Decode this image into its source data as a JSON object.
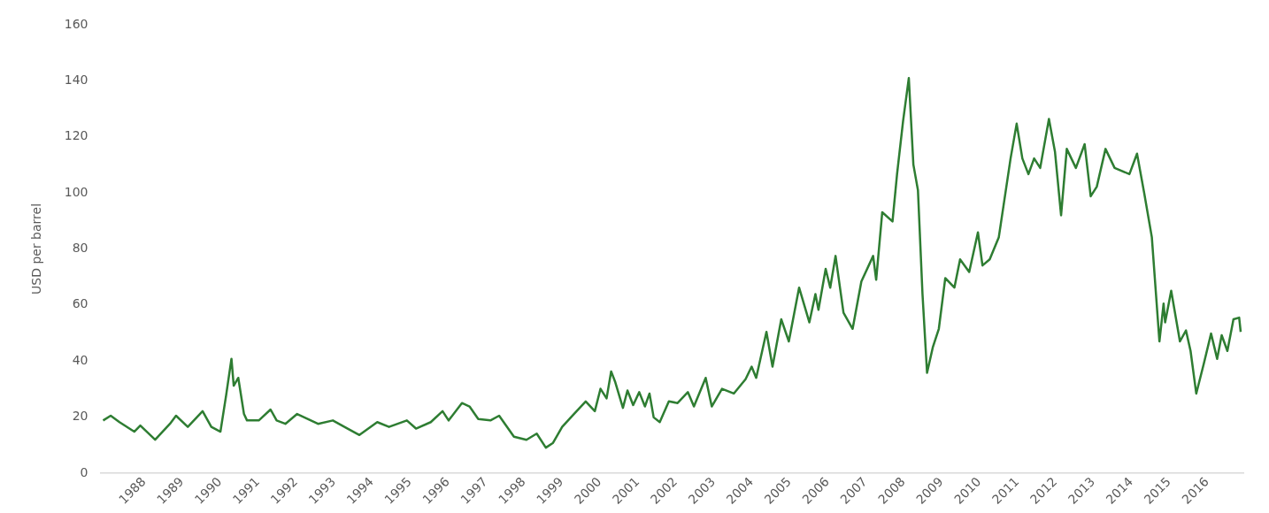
{
  "chart_data": {
    "type": "line",
    "ylabel": "USD per barrel",
    "xlim": [
      1987.35,
      2017.45
    ],
    "xticks": [
      {
        "value": 1988.5,
        "label": "1988"
      },
      {
        "value": 1989.5,
        "label": "1989"
      },
      {
        "value": 1990.5,
        "label": "1990"
      },
      {
        "value": 1991.5,
        "label": "1991"
      },
      {
        "value": 1992.5,
        "label": "1992"
      },
      {
        "value": 1993.5,
        "label": "1993"
      },
      {
        "value": 1994.5,
        "label": "1994"
      },
      {
        "value": 1995.5,
        "label": "1995"
      },
      {
        "value": 1996.5,
        "label": "1996"
      },
      {
        "value": 1997.5,
        "label": "1997"
      },
      {
        "value": 1998.5,
        "label": "1998"
      },
      {
        "value": 1999.5,
        "label": "1999"
      },
      {
        "value": 2000.5,
        "label": "2000"
      },
      {
        "value": 2001.5,
        "label": "2001"
      },
      {
        "value": 2002.5,
        "label": "2002"
      },
      {
        "value": 2003.5,
        "label": "2003"
      },
      {
        "value": 2004.5,
        "label": "2004"
      },
      {
        "value": 2005.5,
        "label": "2005"
      },
      {
        "value": 2006.5,
        "label": "2006"
      },
      {
        "value": 2007.5,
        "label": "2007"
      },
      {
        "value": 2008.5,
        "label": "2008"
      },
      {
        "value": 2009.5,
        "label": "2009"
      },
      {
        "value": 2010.5,
        "label": "2010"
      },
      {
        "value": 2011.5,
        "label": "2011"
      },
      {
        "value": 2012.5,
        "label": "2012"
      },
      {
        "value": 2013.5,
        "label": "2013"
      },
      {
        "value": 2014.5,
        "label": "2014"
      },
      {
        "value": 2015.5,
        "label": "2015"
      },
      {
        "value": 2016.5,
        "label": "2016"
      }
    ],
    "ylim": [
      0,
      160
    ],
    "yticks": [
      0,
      20,
      40,
      60,
      80,
      100,
      120,
      140,
      160
    ],
    "grid": false,
    "legend": false,
    "marker": "none",
    "line_style": "solid",
    "series": [
      {
        "color": "#2e7d32",
        "x": [
          1987.42,
          1987.62,
          1987.85,
          1988.24,
          1988.4,
          1988.79,
          1989.18,
          1989.34,
          1989.65,
          1990.04,
          1990.27,
          1990.51,
          1990.66,
          1990.8,
          1990.86,
          1990.98,
          1991.13,
          1991.21,
          1991.52,
          1991.83,
          1991.99,
          1992.22,
          1992.53,
          1993.08,
          1993.47,
          1993.86,
          1994.17,
          1994.64,
          1994.95,
          1995.42,
          1995.66,
          1996.05,
          1996.36,
          1996.52,
          1996.87,
          1997.07,
          1997.3,
          1997.62,
          1997.85,
          1998.24,
          1998.57,
          1998.84,
          1999.08,
          1999.27,
          1999.51,
          1999.82,
          2000.13,
          2000.37,
          2000.52,
          2000.68,
          2000.8,
          2000.91,
          2001.11,
          2001.23,
          2001.38,
          2001.54,
          2001.69,
          2001.81,
          2001.92,
          2002.08,
          2002.32,
          2002.55,
          2002.82,
          2002.98,
          2003.29,
          2003.45,
          2003.72,
          2004.03,
          2004.34,
          2004.5,
          2004.62,
          2004.89,
          2005.05,
          2005.28,
          2005.48,
          2005.75,
          2006.02,
          2006.18,
          2006.26,
          2006.45,
          2006.57,
          2006.71,
          2006.92,
          2007.16,
          2007.39,
          2007.7,
          2007.78,
          2007.94,
          2008.21,
          2008.33,
          2008.49,
          2008.64,
          2008.76,
          2008.88,
          2009.0,
          2009.12,
          2009.27,
          2009.43,
          2009.6,
          2009.84,
          2009.99,
          2010.23,
          2010.46,
          2010.58,
          2010.77,
          2011.01,
          2011.32,
          2011.48,
          2011.63,
          2011.79,
          2011.94,
          2012.1,
          2012.33,
          2012.49,
          2012.65,
          2012.8,
          2013.04,
          2013.27,
          2013.43,
          2013.59,
          2013.82,
          2014.06,
          2014.45,
          2014.65,
          2014.84,
          2015.04,
          2015.24,
          2015.35,
          2015.39,
          2015.55,
          2015.78,
          2015.94,
          2016.06,
          2016.21,
          2016.41,
          2016.6,
          2016.76,
          2016.88,
          2017.03,
          2017.19,
          2017.34,
          2017.38
        ],
        "values": [
          18.8,
          20.5,
          18.2,
          14.8,
          17.0,
          11.9,
          17.6,
          20.5,
          16.5,
          22.1,
          16.5,
          14.8,
          27.8,
          40.8,
          31.2,
          34.0,
          21.1,
          18.8,
          18.8,
          22.7,
          18.8,
          17.6,
          21.1,
          17.6,
          18.8,
          15.9,
          13.6,
          18.2,
          16.5,
          18.8,
          15.9,
          18.2,
          22.1,
          18.8,
          25.0,
          23.8,
          19.3,
          18.8,
          20.5,
          13.0,
          11.9,
          14.1,
          9.1,
          10.8,
          16.5,
          21.1,
          25.6,
          22.1,
          30.1,
          26.7,
          36.3,
          32.4,
          23.3,
          29.5,
          24.3,
          28.9,
          23.8,
          28.4,
          19.9,
          18.2,
          25.6,
          25.0,
          28.9,
          23.8,
          34.0,
          23.8,
          30.1,
          28.4,
          33.5,
          38.0,
          34.0,
          50.4,
          38.0,
          54.9,
          47.0,
          66.2,
          53.8,
          63.9,
          58.3,
          72.9,
          66.2,
          77.5,
          57.2,
          51.5,
          68.4,
          77.5,
          69.0,
          93.1,
          89.8,
          106.7,
          125.8,
          141.0,
          110.1,
          101.0,
          63.9,
          35.8,
          44.8,
          51.5,
          69.6,
          66.2,
          76.3,
          71.8,
          85.9,
          74.1,
          76.3,
          84.2,
          112.3,
          124.7,
          112.3,
          106.7,
          112.3,
          108.9,
          126.4,
          114.6,
          92.0,
          115.7,
          108.9,
          117.4,
          98.8,
          102.2,
          115.7,
          108.9,
          106.7,
          114.0,
          99.9,
          84.2,
          47.0,
          60.5,
          53.8,
          65.1,
          47.0,
          50.9,
          43.6,
          28.4,
          39.1,
          49.8,
          40.8,
          49.2,
          43.6,
          54.9,
          55.5,
          50.4
        ]
      }
    ]
  }
}
